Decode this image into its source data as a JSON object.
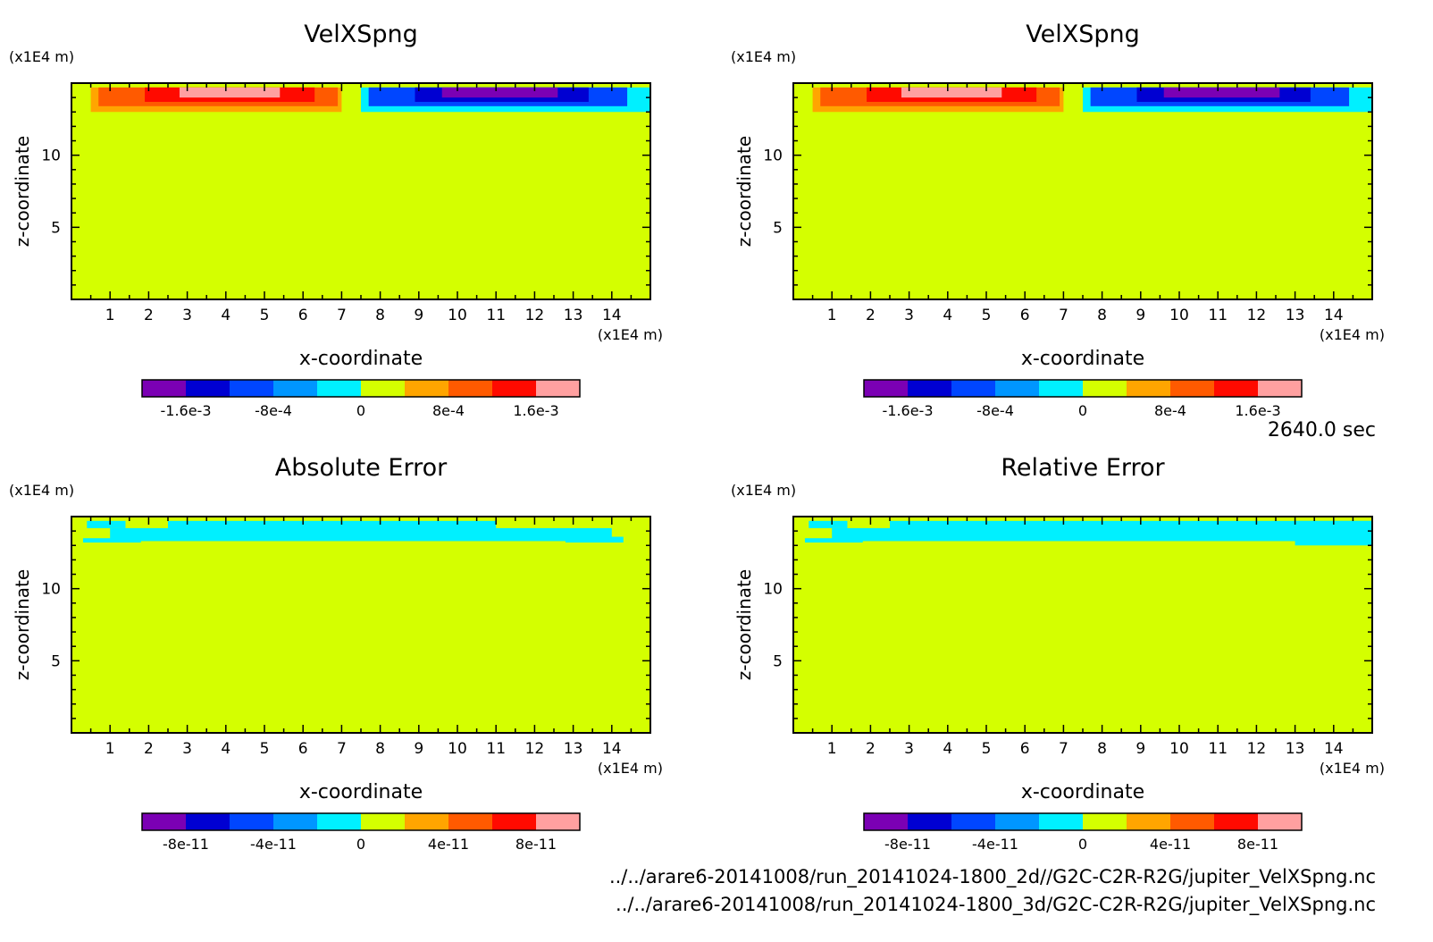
{
  "colors": {
    "background_level": "#d4ff00",
    "scale": [
      "#7b00b4",
      "#0000d2",
      "#0046ff",
      "#0096ff",
      "#00f0ff",
      "#d4ff00",
      "#ffa500",
      "#ff5a00",
      "#ff0a00",
      "#ffa0a0"
    ]
  },
  "time_label": "2640.0 sec",
  "file_paths": [
    "../../arare6-20141008/run_20141024-1800_2d//G2C-C2R-R2G/jupiter_VelXSpng.nc",
    "../../arare6-20141008/run_20141024-1800_3d/G2C-C2R-R2G/jupiter_VelXSpng.nc"
  ],
  "chart_data": [
    {
      "type": "heatmap",
      "title": "VelXSpng",
      "xlabel": "x-coordinate",
      "ylabel": "z-coordinate",
      "x_unit": "(x1E4 m)",
      "y_unit": "(x1E4 m)",
      "xlim": [
        0,
        15
      ],
      "ylim": [
        0,
        15
      ],
      "x_ticks": [
        "1",
        "2",
        "3",
        "4",
        "5",
        "6",
        "7",
        "8",
        "9",
        "10",
        "11",
        "12",
        "13",
        "14"
      ],
      "y_ticks": [
        "5",
        "10"
      ],
      "colorbar_labels": [
        "-1.6e-3",
        "-8e-4",
        "0",
        "8e-4",
        "1.6e-3"
      ],
      "regions": [
        {
          "x": [
            0.5,
            7.0
          ],
          "z": [
            13.0,
            14.7
          ],
          "level": "positive-low"
        },
        {
          "x": [
            0.7,
            6.9
          ],
          "z": [
            13.4,
            14.7
          ],
          "level": "positive-mid"
        },
        {
          "x": [
            1.9,
            6.3
          ],
          "z": [
            13.7,
            14.7
          ],
          "level": "positive-high"
        },
        {
          "x": [
            2.8,
            5.4
          ],
          "z": [
            14.0,
            14.7
          ],
          "level": "positive-max"
        },
        {
          "x": [
            7.5,
            15.0
          ],
          "z": [
            13.0,
            14.7
          ],
          "level": "negative-low"
        },
        {
          "x": [
            7.7,
            14.4
          ],
          "z": [
            13.4,
            14.7
          ],
          "level": "negative-mid"
        },
        {
          "x": [
            8.9,
            13.4
          ],
          "z": [
            13.7,
            14.7
          ],
          "level": "negative-high"
        },
        {
          "x": [
            9.6,
            12.6
          ],
          "z": [
            14.0,
            14.7
          ],
          "level": "negative-max"
        }
      ]
    },
    {
      "type": "heatmap",
      "title": "VelXSpng",
      "xlabel": "x-coordinate",
      "ylabel": "z-coordinate",
      "x_unit": "(x1E4 m)",
      "y_unit": "(x1E4 m)",
      "xlim": [
        0,
        15
      ],
      "ylim": [
        0,
        15
      ],
      "x_ticks": [
        "1",
        "2",
        "3",
        "4",
        "5",
        "6",
        "7",
        "8",
        "9",
        "10",
        "11",
        "12",
        "13",
        "14"
      ],
      "y_ticks": [
        "5",
        "10"
      ],
      "colorbar_labels": [
        "-1.6e-3",
        "-8e-4",
        "0",
        "8e-4",
        "1.6e-3"
      ],
      "regions": [
        {
          "x": [
            0.5,
            7.0
          ],
          "z": [
            13.0,
            14.7
          ],
          "level": "positive-low"
        },
        {
          "x": [
            0.7,
            6.9
          ],
          "z": [
            13.4,
            14.7
          ],
          "level": "positive-mid"
        },
        {
          "x": [
            1.9,
            6.3
          ],
          "z": [
            13.7,
            14.7
          ],
          "level": "positive-high"
        },
        {
          "x": [
            2.8,
            5.4
          ],
          "z": [
            14.0,
            14.7
          ],
          "level": "positive-max"
        },
        {
          "x": [
            7.5,
            15.0
          ],
          "z": [
            13.0,
            14.7
          ],
          "level": "negative-low"
        },
        {
          "x": [
            7.7,
            14.4
          ],
          "z": [
            13.4,
            14.7
          ],
          "level": "negative-mid"
        },
        {
          "x": [
            8.9,
            13.4
          ],
          "z": [
            13.7,
            14.7
          ],
          "level": "negative-high"
        },
        {
          "x": [
            9.6,
            12.6
          ],
          "z": [
            14.0,
            14.7
          ],
          "level": "negative-max"
        }
      ]
    },
    {
      "type": "heatmap",
      "title": "Absolute Error",
      "xlabel": "x-coordinate",
      "ylabel": "z-coordinate",
      "x_unit": "(x1E4 m)",
      "y_unit": "(x1E4 m)",
      "xlim": [
        0,
        15
      ],
      "ylim": [
        0,
        15
      ],
      "x_ticks": [
        "1",
        "2",
        "3",
        "4",
        "5",
        "6",
        "7",
        "8",
        "9",
        "10",
        "11",
        "12",
        "13",
        "14"
      ],
      "y_ticks": [
        "5",
        "10"
      ],
      "colorbar_labels": [
        "-8e-11",
        "-4e-11",
        "0",
        "4e-11",
        "8e-11"
      ],
      "regions": [
        {
          "x": [
            0.4,
            1.4
          ],
          "z": [
            14.2,
            14.7
          ],
          "level": "error-small"
        },
        {
          "x": [
            1.0,
            14.0
          ],
          "z": [
            13.3,
            14.2
          ],
          "level": "error-small"
        },
        {
          "x": [
            2.5,
            11.0
          ],
          "z": [
            13.8,
            14.7
          ],
          "level": "error-small"
        },
        {
          "x": [
            0.3,
            1.8
          ],
          "z": [
            13.2,
            13.5
          ],
          "level": "error-small"
        },
        {
          "x": [
            12.8,
            14.3
          ],
          "z": [
            13.2,
            13.6
          ],
          "level": "error-small"
        }
      ]
    },
    {
      "type": "heatmap",
      "title": "Relative Error",
      "xlabel": "x-coordinate",
      "ylabel": "z-coordinate",
      "x_unit": "(x1E4 m)",
      "y_unit": "(x1E4 m)",
      "xlim": [
        0,
        15
      ],
      "ylim": [
        0,
        15
      ],
      "x_ticks": [
        "1",
        "2",
        "3",
        "4",
        "5",
        "6",
        "7",
        "8",
        "9",
        "10",
        "11",
        "12",
        "13",
        "14"
      ],
      "y_ticks": [
        "5",
        "10"
      ],
      "colorbar_labels": [
        "-8e-11",
        "-4e-11",
        "0",
        "4e-11",
        "8e-11"
      ],
      "regions": [
        {
          "x": [
            0.4,
            1.4
          ],
          "z": [
            14.2,
            14.7
          ],
          "level": "error-small"
        },
        {
          "x": [
            1.0,
            15.0
          ],
          "z": [
            13.3,
            14.2
          ],
          "level": "error-small"
        },
        {
          "x": [
            2.5,
            15.0
          ],
          "z": [
            13.8,
            14.7
          ],
          "level": "error-small"
        },
        {
          "x": [
            0.3,
            1.8
          ],
          "z": [
            13.2,
            13.5
          ],
          "level": "error-small"
        },
        {
          "x": [
            13.0,
            15.0
          ],
          "z": [
            13.0,
            14.7
          ],
          "level": "error-small"
        }
      ]
    }
  ]
}
